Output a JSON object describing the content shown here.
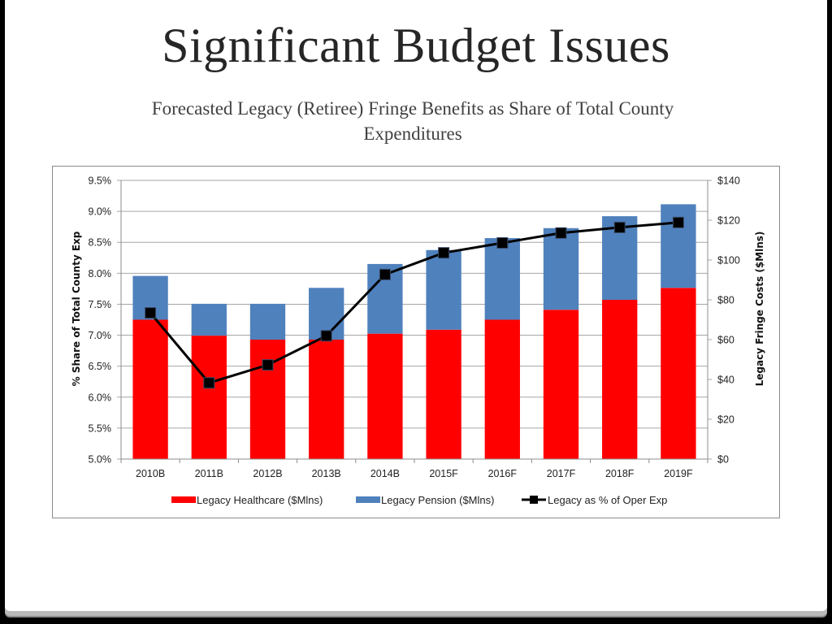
{
  "slide": {
    "title": "Significant Budget Issues",
    "subtitle": "Forecasted Legacy (Retiree) Fringe Benefits as Share of Total County Expenditures"
  },
  "colors": {
    "healthcare": "#ff0000",
    "pension": "#4f81bd",
    "line": "#000000",
    "grid": "#a6a6a6"
  },
  "chart_data": {
    "type": "bar",
    "subtype": "stacked-bar-with-line-secondary-axis",
    "title": "Forecasted Legacy (Retiree) Fringe Benefits as Share of Total County Expenditures",
    "categories": [
      "2010B",
      "2011B",
      "2012B",
      "2013B",
      "2014B",
      "2015F",
      "2016F",
      "2017F",
      "2018F",
      "2019F"
    ],
    "series": [
      {
        "name": "Legacy Healthcare ($Mlns)",
        "type": "bar",
        "axis": "right",
        "values": [
          70,
          62,
          60,
          60,
          63,
          65,
          70,
          75,
          80,
          86
        ]
      },
      {
        "name": "Legacy Pension ($Mlns)",
        "type": "bar",
        "axis": "right",
        "values": [
          22,
          16,
          18,
          26,
          35,
          40,
          41,
          41,
          42,
          42
        ]
      },
      {
        "name": "Legacy as % of Oper Exp",
        "type": "line",
        "axis": "left",
        "values": [
          7.36,
          6.23,
          6.52,
          6.99,
          7.98,
          8.33,
          8.49,
          8.65,
          8.74,
          8.82
        ]
      }
    ],
    "left_axis": {
      "label": "% Share of Total County Exp",
      "range": [
        5.0,
        9.5
      ],
      "ticks": [
        "5.0%",
        "5.5%",
        "6.0%",
        "6.5%",
        "7.0%",
        "7.5%",
        "8.0%",
        "8.5%",
        "9.0%",
        "9.5%"
      ]
    },
    "right_axis": {
      "label": "Legacy Fringe Costs ($Mlns)",
      "range": [
        0,
        140
      ],
      "ticks": [
        "$0",
        "$20",
        "$40",
        "$60",
        "$80",
        "$100",
        "$120",
        "$140"
      ]
    },
    "xlabel": "",
    "grid": true,
    "legend": {
      "position": "bottom",
      "items": [
        "Legacy Healthcare ($Mlns)",
        "Legacy Pension ($Mlns)",
        "Legacy as % of Oper Exp"
      ]
    }
  }
}
